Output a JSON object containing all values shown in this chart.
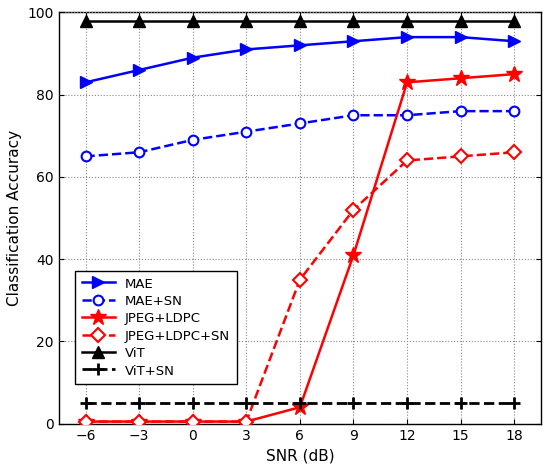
{
  "snr": [
    -6,
    -3,
    0,
    3,
    6,
    9,
    12,
    15,
    18
  ],
  "MAE": [
    83,
    86,
    89,
    91,
    92,
    93,
    94,
    94,
    93
  ],
  "MAE_SN": [
    65,
    66,
    69,
    71,
    73,
    75,
    75,
    76,
    76
  ],
  "JPEG_LDPC": [
    0.5,
    0.5,
    0.5,
    0.5,
    4,
    41,
    83,
    84,
    85
  ],
  "JPEG_LDPC_SN": [
    0.5,
    0.5,
    0.5,
    0.5,
    35,
    52,
    64,
    65,
    66
  ],
  "ViT": [
    98,
    98,
    98,
    98,
    98,
    98,
    98,
    98,
    98
  ],
  "ViT_SN": [
    5,
    5,
    5,
    5,
    5,
    5,
    5,
    5,
    5
  ],
  "ylim": [
    0,
    100
  ],
  "xlim": [
    -7.5,
    19.5
  ],
  "xlabel": "SNR (dB)",
  "ylabel": "Classification Accuracy",
  "legend_MAE": "MAE",
  "legend_MAE_SN": "MAE+SN",
  "legend_JPEG_LDPC": "JPEG+LDPC",
  "legend_JPEG_LDPC_SN": "JPEG+LDPC+SN",
  "legend_ViT": "ViT",
  "legend_ViT_SN": "ViT+SN",
  "blue_color": "#0000FF",
  "red_color": "#FF0000",
  "black_color": "#000000",
  "xticks": [
    -6,
    -3,
    0,
    3,
    6,
    9,
    12,
    15,
    18
  ],
  "yticks": [
    0,
    20,
    40,
    60,
    80,
    100
  ]
}
